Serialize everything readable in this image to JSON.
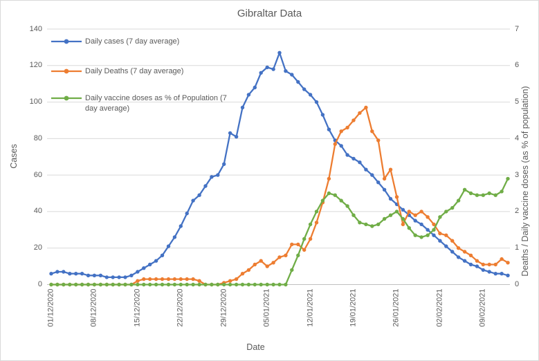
{
  "chart": {
    "title": "Gibraltar Data",
    "x_axis_title": "Date",
    "y_left_axis_title": "Cases",
    "y_right_axis_title": "Deaths / Daily vaccine doses (as % of population)"
  },
  "legend": {
    "items": [
      {
        "label": "Daily cases (7 day average)",
        "color": "#4472c4"
      },
      {
        "label": "Daily Deaths (7 day average)",
        "color": "#ed7d31"
      },
      {
        "label": "Daily vaccine doses as % of Population (7 day average)",
        "color": "#70ad47"
      }
    ]
  },
  "colors": {
    "grid": "#d9d9d9",
    "axis_line": "#bfbfbf",
    "text": "#595959",
    "series_blue": "#4472c4",
    "series_orange": "#ed7d31",
    "series_green": "#70ad47"
  },
  "chart_data": {
    "type": "line",
    "title": "Gibraltar Data",
    "xlabel": "Date",
    "ylabel_left": "Cases",
    "ylabel_right": "Deaths / Daily vaccine doses (as % of population)",
    "grid": true,
    "legend_position": "top-left-inside",
    "x_tick_every": 7,
    "x_tick_labels": [
      "01/12/2020",
      "08/12/2020",
      "15/12/2020",
      "22/12/2020",
      "29/12/2020",
      "05/01/2021",
      "12/01/2021",
      "19/01/2021",
      "26/01/2021",
      "02/02/2021",
      "09/02/2021"
    ],
    "y_left": {
      "min": 0,
      "max": 140,
      "step": 20,
      "ticks": [
        0,
        20,
        40,
        60,
        80,
        100,
        120,
        140
      ]
    },
    "y_right": {
      "min": 0,
      "max": 7,
      "step": 1,
      "ticks": [
        0,
        1,
        2,
        3,
        4,
        5,
        6,
        7
      ]
    },
    "x": [
      "01/12/2020",
      "02/12/2020",
      "03/12/2020",
      "04/12/2020",
      "05/12/2020",
      "06/12/2020",
      "07/12/2020",
      "08/12/2020",
      "09/12/2020",
      "10/12/2020",
      "11/12/2020",
      "12/12/2020",
      "13/12/2020",
      "14/12/2020",
      "15/12/2020",
      "16/12/2020",
      "17/12/2020",
      "18/12/2020",
      "19/12/2020",
      "20/12/2020",
      "21/12/2020",
      "22/12/2020",
      "23/12/2020",
      "24/12/2020",
      "25/12/2020",
      "26/12/2020",
      "27/12/2020",
      "28/12/2020",
      "29/12/2020",
      "30/12/2020",
      "31/12/2020",
      "01/01/2021",
      "02/01/2021",
      "03/01/2021",
      "04/01/2021",
      "05/01/2021",
      "06/01/2021",
      "07/01/2021",
      "08/01/2021",
      "09/01/2021",
      "10/01/2021",
      "11/01/2021",
      "12/01/2021",
      "13/01/2021",
      "14/01/2021",
      "15/01/2021",
      "16/01/2021",
      "17/01/2021",
      "18/01/2021",
      "19/01/2021",
      "20/01/2021",
      "21/01/2021",
      "22/01/2021",
      "23/01/2021",
      "24/01/2021",
      "25/01/2021",
      "26/01/2021",
      "27/01/2021",
      "28/01/2021",
      "29/01/2021",
      "30/01/2021",
      "31/01/2021",
      "01/02/2021",
      "02/02/2021",
      "03/02/2021",
      "04/02/2021",
      "05/02/2021",
      "06/02/2021",
      "07/02/2021",
      "08/02/2021",
      "09/02/2021",
      "10/02/2021",
      "11/02/2021",
      "12/02/2021",
      "13/02/2021"
    ],
    "series": [
      {
        "name": "Daily cases (7 day average)",
        "axis": "left",
        "color": "#4472c4",
        "values": [
          6,
          7,
          7,
          6,
          6,
          6,
          5,
          5,
          5,
          4,
          4,
          4,
          4,
          5,
          7,
          9,
          11,
          13,
          16,
          21,
          26,
          32,
          39,
          46,
          49,
          54,
          59,
          60,
          66,
          83,
          81,
          97,
          104,
          108,
          116,
          119,
          118,
          127,
          117,
          115,
          111,
          107,
          104,
          100,
          93,
          85,
          79,
          76,
          71,
          69,
          67,
          63,
          60,
          56,
          52,
          47,
          44,
          41,
          38,
          35,
          33,
          30,
          27,
          24,
          21,
          18,
          15,
          13,
          11,
          10,
          8,
          7,
          6,
          6,
          5
        ]
      },
      {
        "name": "Daily Deaths (7 day average)",
        "axis": "right",
        "color": "#ed7d31",
        "values": [
          0,
          0,
          0,
          0,
          0,
          0,
          0,
          0,
          0,
          0,
          0,
          0,
          0,
          0,
          0.1,
          0.15,
          0.15,
          0.15,
          0.15,
          0.15,
          0.15,
          0.15,
          0.15,
          0.15,
          0.1,
          0,
          0,
          0,
          0.05,
          0.1,
          0.15,
          0.3,
          0.4,
          0.55,
          0.65,
          0.5,
          0.6,
          0.75,
          0.8,
          1.1,
          1.1,
          0.95,
          1.25,
          1.7,
          2.25,
          2.9,
          3.85,
          4.2,
          4.3,
          4.5,
          4.7,
          4.85,
          4.2,
          3.95,
          2.9,
          3.15,
          2.4,
          1.65,
          2.0,
          1.9,
          2.0,
          1.85,
          1.65,
          1.4,
          1.35,
          1.2,
          1.0,
          0.9,
          0.8,
          0.65,
          0.55,
          0.55,
          0.55,
          0.7,
          0.6
        ]
      },
      {
        "name": "Daily vaccine doses as % of Population (7 day average)",
        "axis": "right",
        "color": "#70ad47",
        "values": [
          0,
          0,
          0,
          0,
          0,
          0,
          0,
          0,
          0,
          0,
          0,
          0,
          0,
          0,
          0,
          0,
          0,
          0,
          0,
          0,
          0,
          0,
          0,
          0,
          0,
          0,
          0,
          0,
          0,
          0,
          0,
          0,
          0,
          0,
          0,
          0,
          0,
          0,
          0,
          0.4,
          0.8,
          1.25,
          1.65,
          2.0,
          2.3,
          2.5,
          2.45,
          2.3,
          2.15,
          1.9,
          1.7,
          1.65,
          1.6,
          1.65,
          1.8,
          1.9,
          2.0,
          1.8,
          1.55,
          1.35,
          1.3,
          1.35,
          1.5,
          1.85,
          2.0,
          2.1,
          2.3,
          2.6,
          2.5,
          2.45,
          2.45,
          2.5,
          2.45,
          2.55,
          2.9
        ]
      }
    ]
  }
}
